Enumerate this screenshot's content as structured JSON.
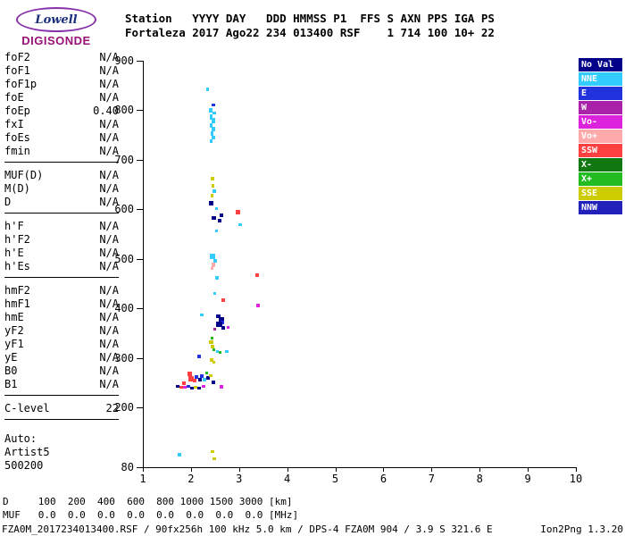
{
  "logo": {
    "name": "Lowell",
    "subtitle": "DIGISONDE"
  },
  "header": {
    "line1": "Station   YYYY DAY   DDD HMMSS P1  FFS S AXN PPS IGA PS",
    "line2": "Fortaleza 2017 Ago22 234 013400 RSF    1 714 100 10+ 22"
  },
  "params": {
    "groups": [
      [
        {
          "label": "foF2",
          "value": "N/A"
        },
        {
          "label": "foF1",
          "value": "N/A"
        },
        {
          "label": "foF1p",
          "value": "N/A"
        },
        {
          "label": "foE",
          "value": "N/A"
        },
        {
          "label": "foEp",
          "value": "0.40"
        },
        {
          "label": "fxI",
          "value": "N/A"
        },
        {
          "label": "foEs",
          "value": "N/A"
        },
        {
          "label": "fmin",
          "value": "N/A"
        }
      ],
      [
        {
          "label": "MUF(D)",
          "value": "N/A"
        },
        {
          "label": "M(D)",
          "value": "N/A"
        },
        {
          "label": "D",
          "value": "N/A"
        }
      ],
      [
        {
          "label": "h'F",
          "value": "N/A"
        },
        {
          "label": "h'F2",
          "value": "N/A"
        },
        {
          "label": "h'E",
          "value": "N/A"
        },
        {
          "label": "h'Es",
          "value": "N/A"
        }
      ],
      [
        {
          "label": "hmF2",
          "value": "N/A"
        },
        {
          "label": "hmF1",
          "value": "N/A"
        },
        {
          "label": "hmE",
          "value": "N/A"
        },
        {
          "label": "yF2",
          "value": "N/A"
        },
        {
          "label": "yF1",
          "value": "N/A"
        },
        {
          "label": "yE",
          "value": "N/A"
        },
        {
          "label": "B0",
          "value": "N/A"
        },
        {
          "label": "B1",
          "value": "N/A"
        }
      ],
      [
        {
          "label": "C-level",
          "value": "22"
        }
      ]
    ],
    "footer": [
      "Auto:",
      "Artist5",
      "500200"
    ]
  },
  "colors": {
    "NoVal": "#000088",
    "NNE": "#33CCFF",
    "E": "#2233DD",
    "W": "#AA22AA",
    "Vo-": "#DD22DD",
    "Vo+": "#FFAAAA",
    "SSW": "#FF4040",
    "X-": "#117711",
    "X+": "#22BB22",
    "SSE": "#CCCC00",
    "NNW": "#2222BB"
  },
  "legend": {
    "entries": [
      {
        "key": "NoVal",
        "label": "No Val"
      },
      {
        "key": "NNE",
        "label": "NNE"
      },
      {
        "key": "E",
        "label": "E"
      },
      {
        "key": "W",
        "label": "W"
      },
      {
        "key": "Vo-",
        "label": "Vo-"
      },
      {
        "key": "Vo+",
        "label": "Vo+"
      },
      {
        "key": "SSW",
        "label": "SSW"
      },
      {
        "key": "X-",
        "label": "X-"
      },
      {
        "key": "X+",
        "label": "X+"
      },
      {
        "key": "SSE",
        "label": "SSE"
      },
      {
        "key": "NNW",
        "label": "NNW"
      }
    ]
  },
  "chart_data": {
    "type": "scatter",
    "x_unit": "MHz",
    "y_unit": "km",
    "xlim": [
      1,
      10
    ],
    "ylim": [
      80,
      900
    ],
    "x_ticks": [
      1,
      2,
      3,
      4,
      5,
      6,
      7,
      8,
      9,
      10
    ],
    "y_ticks": [
      900,
      800,
      700,
      600,
      500,
      400,
      300,
      200,
      80
    ],
    "grid": false,
    "legend_position": "right",
    "points": [
      {
        "f": 2.33,
        "km": 843,
        "d": "NNE",
        "sw": 3,
        "sh": 4
      },
      {
        "f": 2.45,
        "km": 810,
        "d": "E",
        "sw": 4,
        "sh": 3
      },
      {
        "f": 2.4,
        "km": 800,
        "d": "NNE",
        "sw": 4,
        "sh": 5
      },
      {
        "f": 2.46,
        "km": 795,
        "d": "NNE",
        "sw": 4,
        "sh": 3
      },
      {
        "f": 2.41,
        "km": 787,
        "d": "NNE",
        "sw": 3,
        "sh": 6
      },
      {
        "f": 2.44,
        "km": 779,
        "d": "NNE",
        "sw": 4,
        "sh": 6
      },
      {
        "f": 2.41,
        "km": 770,
        "d": "NNE",
        "sw": 3,
        "sh": 5
      },
      {
        "f": 2.45,
        "km": 762,
        "d": "NNE",
        "sw": 4,
        "sh": 5
      },
      {
        "f": 2.42,
        "km": 754,
        "d": "NNE",
        "sw": 3,
        "sh": 5
      },
      {
        "f": 2.44,
        "km": 745,
        "d": "NNE",
        "sw": 4,
        "sh": 4
      },
      {
        "f": 2.41,
        "km": 737,
        "d": "NNE",
        "sw": 3,
        "sh": 4
      },
      {
        "f": 2.42,
        "km": 662,
        "d": "SSE",
        "sw": 4,
        "sh": 4
      },
      {
        "f": 2.43,
        "km": 648,
        "d": "SSE",
        "sw": 3,
        "sh": 4
      },
      {
        "f": 2.46,
        "km": 636,
        "d": "NNE",
        "sw": 4,
        "sh": 4
      },
      {
        "f": 2.42,
        "km": 627,
        "d": "SSE",
        "sw": 3,
        "sh": 4
      },
      {
        "f": 2.41,
        "km": 612,
        "d": "NoVal",
        "sw": 5,
        "sh": 5
      },
      {
        "f": 2.52,
        "km": 602,
        "d": "NNE",
        "sw": 3,
        "sh": 3
      },
      {
        "f": 2.95,
        "km": 594,
        "d": "SSW",
        "sw": 5,
        "sh": 5
      },
      {
        "f": 2.61,
        "km": 588,
        "d": "NoVal",
        "sw": 4,
        "sh": 4
      },
      {
        "f": 2.45,
        "km": 583,
        "d": "NoVal",
        "sw": 5,
        "sh": 4
      },
      {
        "f": 2.57,
        "km": 577,
        "d": "NoVal",
        "sw": 4,
        "sh": 4
      },
      {
        "f": 3.0,
        "km": 570,
        "d": "NNE",
        "sw": 4,
        "sh": 3
      },
      {
        "f": 2.52,
        "km": 556,
        "d": "NNE",
        "sw": 3,
        "sh": 3
      },
      {
        "f": 2.43,
        "km": 505,
        "d": "NNE",
        "sw": 6,
        "sh": 6
      },
      {
        "f": 2.48,
        "km": 497,
        "d": "NNE",
        "sw": 4,
        "sh": 4
      },
      {
        "f": 2.44,
        "km": 489,
        "d": "Vo+",
        "sw": 4,
        "sh": 5
      },
      {
        "f": 2.42,
        "km": 481,
        "d": "Vo+",
        "sw": 3,
        "sh": 3
      },
      {
        "f": 2.52,
        "km": 462,
        "d": "NNE",
        "sw": 4,
        "sh": 4
      },
      {
        "f": 3.36,
        "km": 468,
        "d": "SSW",
        "sw": 4,
        "sh": 4
      },
      {
        "f": 2.47,
        "km": 430,
        "d": "NNE",
        "sw": 3,
        "sh": 3
      },
      {
        "f": 2.66,
        "km": 417,
        "d": "SSW",
        "sw": 4,
        "sh": 4
      },
      {
        "f": 3.38,
        "km": 407,
        "d": "Vo-",
        "sw": 4,
        "sh": 4
      },
      {
        "f": 2.21,
        "km": 388,
        "d": "NNE",
        "sw": 4,
        "sh": 3
      },
      {
        "f": 2.55,
        "km": 384,
        "d": "NoVal",
        "sw": 5,
        "sh": 4
      },
      {
        "f": 2.61,
        "km": 379,
        "d": "NoVal",
        "sw": 6,
        "sh": 5
      },
      {
        "f": 2.64,
        "km": 372,
        "d": "E",
        "sw": 4,
        "sh": 4
      },
      {
        "f": 2.56,
        "km": 368,
        "d": "NoVal",
        "sw": 7,
        "sh": 6
      },
      {
        "f": 2.66,
        "km": 362,
        "d": "NoVal",
        "sw": 4,
        "sh": 4
      },
      {
        "f": 2.76,
        "km": 362,
        "d": "Vo-",
        "sw": 3,
        "sh": 3
      },
      {
        "f": 2.48,
        "km": 359,
        "d": "W",
        "sw": 3,
        "sh": 3
      },
      {
        "f": 2.42,
        "km": 341,
        "d": "X+",
        "sw": 3,
        "sh": 3
      },
      {
        "f": 2.41,
        "km": 332,
        "d": "SSE",
        "sw": 5,
        "sh": 4
      },
      {
        "f": 2.43,
        "km": 324,
        "d": "SSE",
        "sw": 4,
        "sh": 4
      },
      {
        "f": 2.46,
        "km": 317,
        "d": "X+",
        "sw": 3,
        "sh": 3
      },
      {
        "f": 2.53,
        "km": 314,
        "d": "NNE",
        "sw": 3,
        "sh": 3
      },
      {
        "f": 2.59,
        "km": 311,
        "d": "X+",
        "sw": 3,
        "sh": 3
      },
      {
        "f": 2.73,
        "km": 314,
        "d": "NNE",
        "sw": 4,
        "sh": 3
      },
      {
        "f": 2.15,
        "km": 303,
        "d": "E",
        "sw": 4,
        "sh": 4
      },
      {
        "f": 2.41,
        "km": 297,
        "d": "SSE",
        "sw": 4,
        "sh": 4
      },
      {
        "f": 2.46,
        "km": 291,
        "d": "SSE",
        "sw": 3,
        "sh": 3
      },
      {
        "f": 1.95,
        "km": 268,
        "d": "SSW",
        "sw": 5,
        "sh": 5
      },
      {
        "f": 1.99,
        "km": 259,
        "d": "SSW",
        "sw": 6,
        "sh": 6
      },
      {
        "f": 2.05,
        "km": 254,
        "d": "SSW",
        "sw": 4,
        "sh": 4
      },
      {
        "f": 2.1,
        "km": 262,
        "d": "E",
        "sw": 4,
        "sh": 4
      },
      {
        "f": 2.16,
        "km": 257,
        "d": "NoVal",
        "sw": 4,
        "sh": 4
      },
      {
        "f": 2.21,
        "km": 263,
        "d": "E",
        "sw": 4,
        "sh": 4
      },
      {
        "f": 2.27,
        "km": 256,
        "d": "NNE",
        "sw": 4,
        "sh": 4
      },
      {
        "f": 2.33,
        "km": 260,
        "d": "NoVal",
        "sw": 4,
        "sh": 4
      },
      {
        "f": 2.39,
        "km": 264,
        "d": "SSE",
        "sw": 4,
        "sh": 3
      },
      {
        "f": 2.31,
        "km": 271,
        "d": "X+",
        "sw": 3,
        "sh": 3
      },
      {
        "f": 2.44,
        "km": 252,
        "d": "NoVal",
        "sw": 4,
        "sh": 4
      },
      {
        "f": 1.84,
        "km": 249,
        "d": "SSW",
        "sw": 4,
        "sh": 4
      },
      {
        "f": 1.7,
        "km": 244,
        "d": "NoVal",
        "sw": 4,
        "sh": 3
      },
      {
        "f": 1.78,
        "km": 242,
        "d": "SSW",
        "sw": 4,
        "sh": 3
      },
      {
        "f": 1.86,
        "km": 241,
        "d": "Vo-",
        "sw": 4,
        "sh": 3
      },
      {
        "f": 1.93,
        "km": 243,
        "d": "E",
        "sw": 4,
        "sh": 3
      },
      {
        "f": 2.0,
        "km": 240,
        "d": "NoVal",
        "sw": 4,
        "sh": 3
      },
      {
        "f": 2.08,
        "km": 242,
        "d": "SSE",
        "sw": 4,
        "sh": 3
      },
      {
        "f": 2.15,
        "km": 240,
        "d": "NoVal",
        "sw": 4,
        "sh": 3
      },
      {
        "f": 2.24,
        "km": 243,
        "d": "Vo-",
        "sw": 4,
        "sh": 3
      },
      {
        "f": 2.61,
        "km": 242,
        "d": "Vo-",
        "sw": 4,
        "sh": 4
      },
      {
        "f": 1.74,
        "km": 106,
        "d": "NNE",
        "sw": 4,
        "sh": 4
      },
      {
        "f": 2.43,
        "km": 112,
        "d": "SSE",
        "sw": 4,
        "sh": 3
      },
      {
        "f": 2.47,
        "km": 97,
        "d": "SSE",
        "sw": 4,
        "sh": 3
      }
    ]
  },
  "dmuf": {
    "line1": "D     100  200  400  600  800 1000 1500 3000 [km]",
    "line2": "MUF   0.0  0.0  0.0  0.0  0.0  0.0  0.0  0.0 [MHz]"
  },
  "statusbar": {
    "left": "FZA0M_2017234013400.RSF / 90fx256h 100 kHz 5.0 km / DPS-4 FZA0M 904 / 3.9 S 321.6 E",
    "right": "Ion2Png 1.3.20"
  }
}
